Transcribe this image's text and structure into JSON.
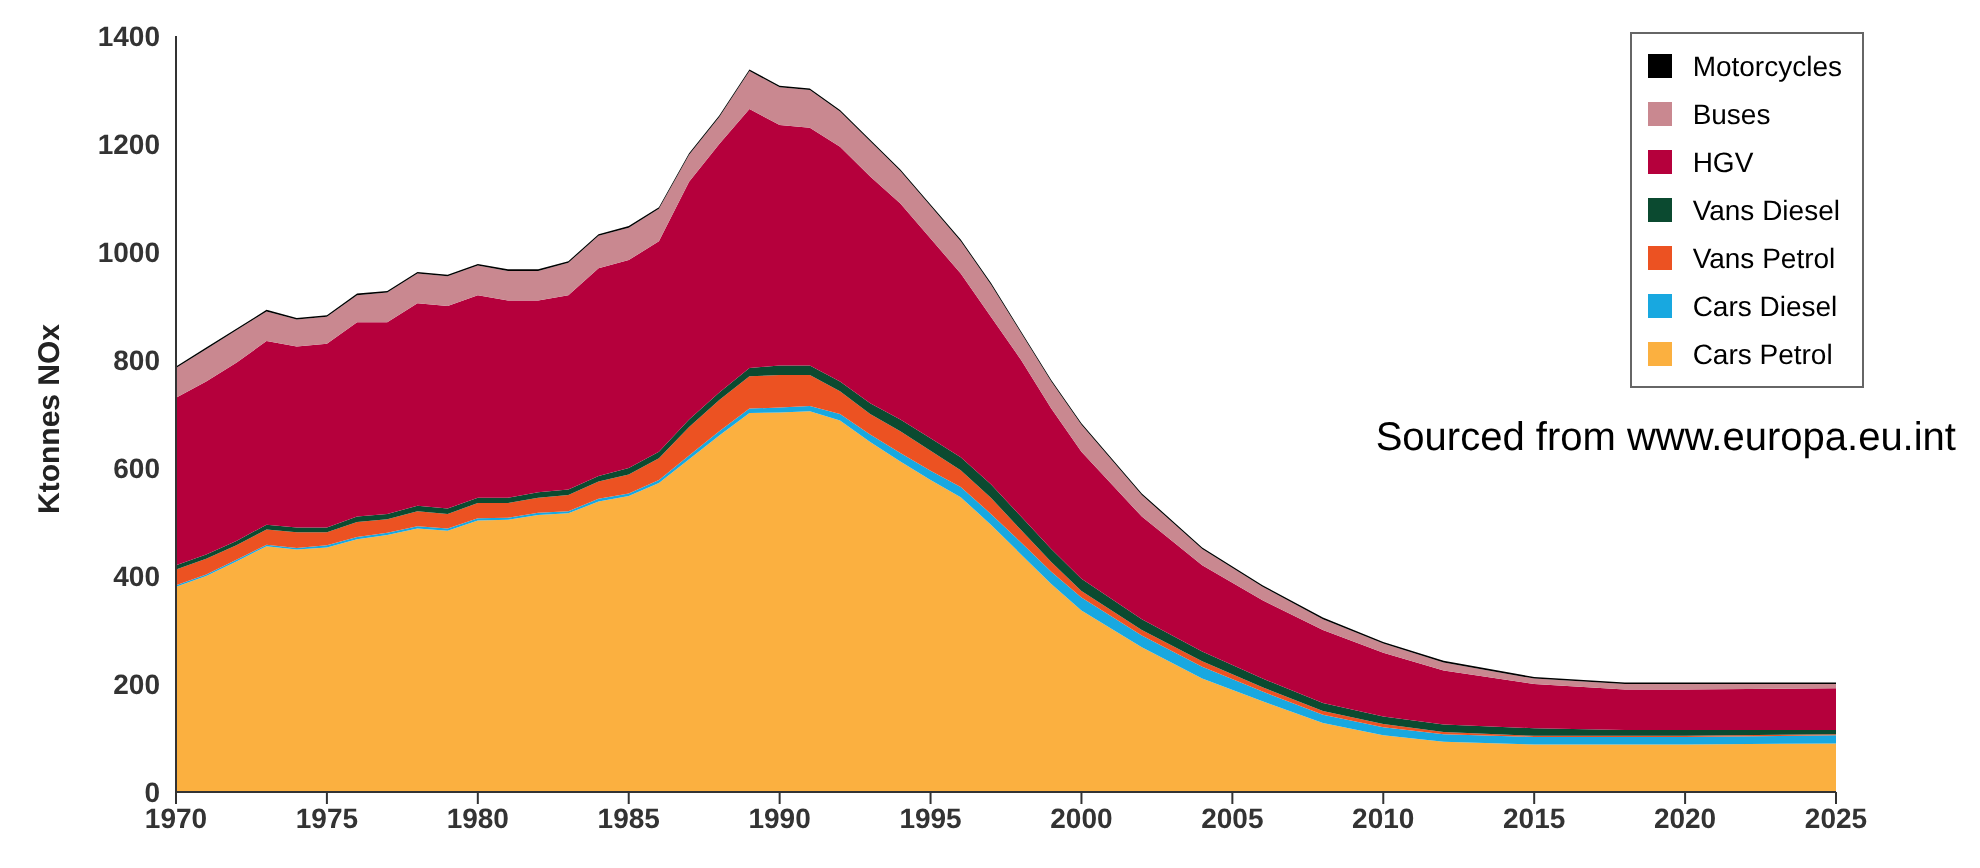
{
  "chart_data": {
    "type": "area",
    "stacked": true,
    "ylabel": "Ktonnes NOx",
    "x": [
      1970,
      1971,
      1972,
      1973,
      1974,
      1975,
      1976,
      1977,
      1978,
      1979,
      1980,
      1981,
      1982,
      1983,
      1984,
      1985,
      1986,
      1987,
      1988,
      1989,
      1990,
      1991,
      1992,
      1993,
      1994,
      1995,
      1996,
      1997,
      1998,
      1999,
      2000,
      2002,
      2004,
      2006,
      2008,
      2010,
      2012,
      2015,
      2018,
      2020,
      2025
    ],
    "series": [
      {
        "name": "Cars Petrol",
        "color": "#fbb040",
        "values": [
          380,
          400,
          427,
          455,
          449,
          453,
          468,
          476,
          488,
          484,
          503,
          504,
          513,
          516,
          538,
          548,
          572,
          616,
          660,
          702,
          703,
          705,
          688,
          648,
          612,
          578,
          546,
          495,
          440,
          385,
          336,
          268,
          210,
          168,
          128,
          105,
          93,
          88,
          88,
          88,
          90
        ]
      },
      {
        "name": "Cars Diesel",
        "color": "#18a8e0",
        "values": [
          3,
          3,
          3,
          3,
          3,
          4,
          4,
          4,
          4,
          4,
          4,
          4,
          4,
          4,
          5,
          5,
          6,
          7,
          8,
          8,
          9,
          10,
          12,
          14,
          16,
          17,
          19,
          20,
          22,
          23,
          24,
          22,
          22,
          18,
          15,
          15,
          14,
          14,
          14,
          14,
          15
        ]
      },
      {
        "name": "Vans Petrol",
        "color": "#ec5222",
        "values": [
          29,
          29,
          27,
          28,
          29,
          24,
          28,
          25,
          28,
          27,
          28,
          27,
          28,
          30,
          32,
          35,
          40,
          53,
          58,
          60,
          60,
          57,
          42,
          38,
          40,
          37,
          31,
          30,
          23,
          18,
          12,
          10,
          10,
          8,
          7,
          6,
          4,
          2,
          2,
          2,
          2
        ]
      },
      {
        "name": "Vans Diesel",
        "color": "#0b4a30",
        "values": [
          8,
          8,
          8,
          9,
          9,
          9,
          10,
          10,
          10,
          10,
          10,
          10,
          10,
          10,
          10,
          12,
          12,
          14,
          14,
          15,
          18,
          18,
          18,
          20,
          22,
          23,
          24,
          25,
          25,
          24,
          23,
          20,
          18,
          16,
          15,
          14,
          14,
          14,
          11,
          11,
          8
        ]
      },
      {
        "name": "HGV",
        "color": "#b5003c",
        "values": [
          310,
          320,
          330,
          340,
          335,
          340,
          360,
          355,
          375,
          375,
          375,
          365,
          355,
          360,
          385,
          385,
          390,
          440,
          460,
          480,
          445,
          440,
          435,
          420,
          400,
          370,
          340,
          310,
          290,
          260,
          235,
          190,
          160,
          145,
          135,
          118,
          100,
          82,
          75,
          75,
          77
        ]
      },
      {
        "name": "Buses",
        "color": "#c98890",
        "values": [
          55,
          60,
          60,
          55,
          50,
          50,
          50,
          55,
          55,
          55,
          55,
          55,
          55,
          60,
          60,
          60,
          60,
          50,
          50,
          70,
          70,
          70,
          65,
          65,
          60,
          60,
          60,
          60,
          50,
          50,
          50,
          40,
          30,
          25,
          20,
          17,
          15,
          10,
          10,
          10,
          8
        ]
      },
      {
        "name": "Motorcycles",
        "color": "#000000",
        "values": [
          3,
          3,
          3,
          3,
          3,
          3,
          3,
          3,
          3,
          3,
          3,
          3,
          3,
          3,
          3,
          3,
          3,
          3,
          3,
          3,
          3,
          3,
          3,
          3,
          3,
          3,
          3,
          3,
          3,
          3,
          3,
          3,
          3,
          3,
          3,
          3,
          3,
          3,
          3,
          3,
          3
        ]
      }
    ],
    "xlim": [
      1970,
      2025
    ],
    "xticks": [
      1970,
      1975,
      1980,
      1985,
      1990,
      1995,
      2000,
      2005,
      2010,
      2015,
      2020,
      2025
    ],
    "ylim": [
      0,
      1400
    ],
    "yticks": [
      0,
      200,
      400,
      600,
      800,
      1000,
      1200,
      1400
    ],
    "grid": false,
    "legend": "top right",
    "annotations": [
      "Sourced from www.europa.eu.int"
    ]
  }
}
